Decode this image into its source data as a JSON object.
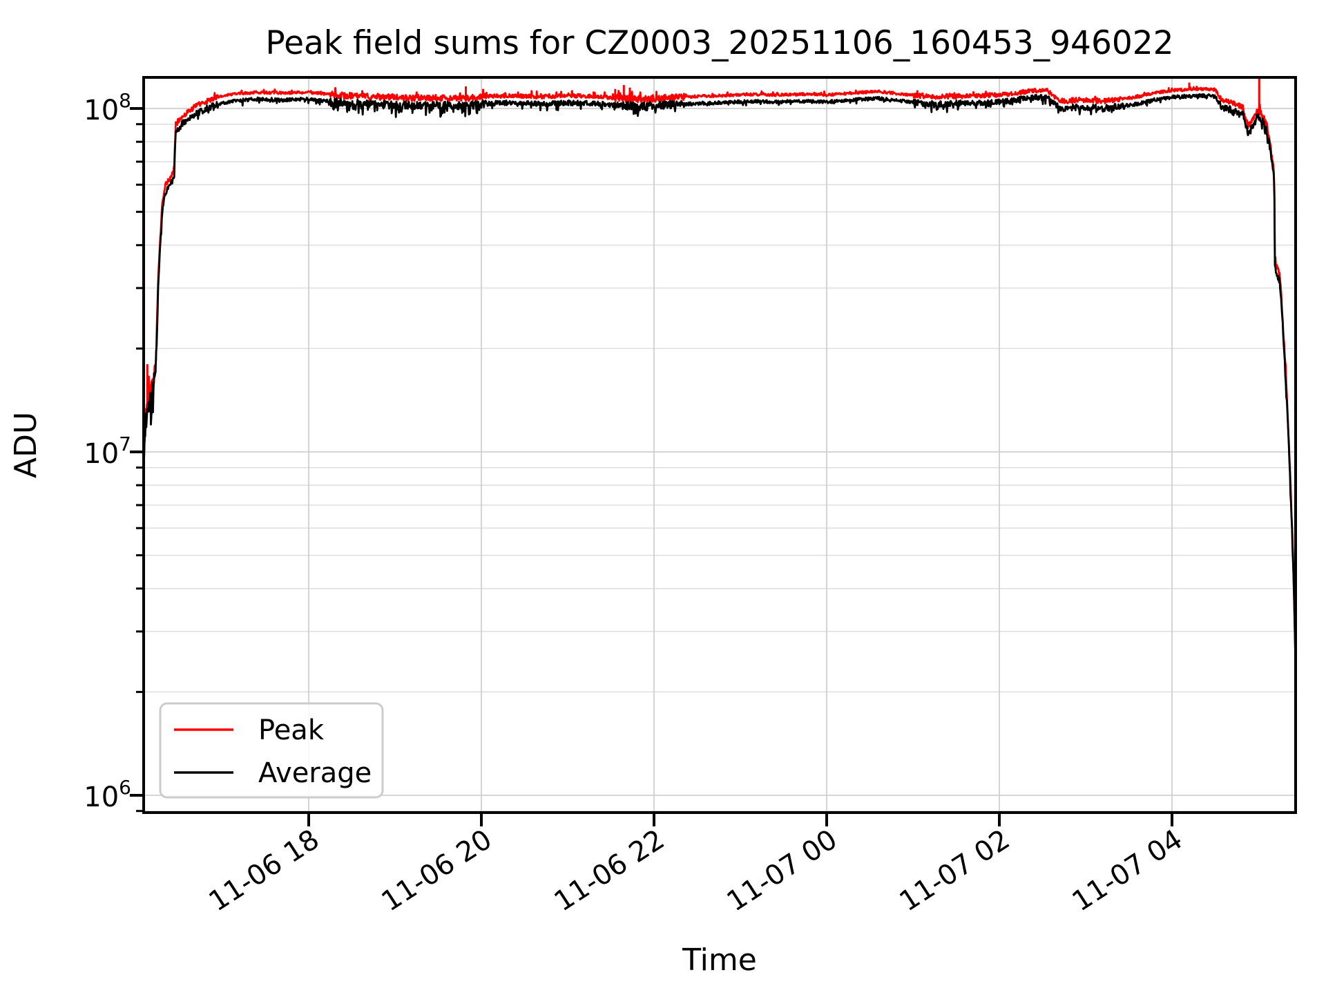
{
  "title": "Peak field sums for CZ0003_20251106_160453_946022",
  "axes": {
    "xlabel": "Time",
    "ylabel": "ADU"
  },
  "legend": {
    "items": [
      {
        "label": "Peak",
        "color": "#ff0000"
      },
      {
        "label": "Average",
        "color": "#000000"
      }
    ]
  },
  "chart_data": {
    "type": "line",
    "title": "Peak field sums for CZ0003_20251106_160453_946022",
    "xlabel": "Time",
    "ylabel": "ADU",
    "yscale": "log",
    "ylim": [
      870000,
      123000000
    ],
    "x_unit_hours_after": "2025-11-06 16:00",
    "x_range_hours": [
      0.088,
      13.445
    ],
    "grid": "both",
    "legend_position": "lower-left",
    "x_ticks": [
      {
        "h": 2,
        "label": "11-06 18"
      },
      {
        "h": 4,
        "label": "11-06 20"
      },
      {
        "h": 6,
        "label": "11-06 22"
      },
      {
        "h": 8,
        "label": "11-07 00"
      },
      {
        "h": 10,
        "label": "11-07 02"
      },
      {
        "h": 12,
        "label": "11-07 04"
      }
    ],
    "y_ticks": [
      {
        "value": 1000000,
        "base": "10",
        "exp": "6"
      },
      {
        "value": 10000000,
        "base": "10",
        "exp": "7"
      },
      {
        "value": 100000000,
        "base": "10",
        "exp": "8"
      }
    ],
    "series": [
      {
        "name": "Peak",
        "color": "#ff0000",
        "bias": "up",
        "points": [
          [
            0.09,
            10000000.0
          ],
          [
            0.11,
            12600000.0
          ],
          [
            0.15,
            14700000.0
          ],
          [
            0.2,
            15800000.0
          ],
          [
            0.23,
            19000000.0
          ],
          [
            0.26,
            33600000.0
          ],
          [
            0.3,
            51500000.0
          ],
          [
            0.34,
            60000000.0
          ],
          [
            0.4,
            63000000.0
          ],
          [
            0.44,
            66000000.0
          ],
          [
            0.46,
            90000000.0
          ],
          [
            0.55,
            95500000.0
          ],
          [
            0.7,
            102000000.0
          ],
          [
            0.9,
            107000000.0
          ],
          [
            1.1,
            110000000.0
          ],
          [
            1.4,
            111500000.0
          ],
          [
            1.7,
            111000000.0
          ],
          [
            2.0,
            111500000.0
          ],
          [
            2.3,
            109500000.0
          ],
          [
            2.6,
            108500000.0
          ],
          [
            2.9,
            108000000.0
          ],
          [
            3.2,
            107000000.0
          ],
          [
            3.5,
            107500000.0
          ],
          [
            3.8,
            107000000.0
          ],
          [
            4.1,
            108500000.0
          ],
          [
            4.4,
            109000000.0
          ],
          [
            4.7,
            108000000.0
          ],
          [
            5.0,
            109000000.0
          ],
          [
            5.3,
            108500000.0
          ],
          [
            5.6,
            107000000.0
          ],
          [
            5.9,
            106500000.0
          ],
          [
            6.2,
            107500000.0
          ],
          [
            6.5,
            108500000.0
          ],
          [
            6.8,
            109000000.0
          ],
          [
            7.1,
            110000000.0
          ],
          [
            7.4,
            109500000.0
          ],
          [
            7.7,
            110000000.0
          ],
          [
            8.0,
            109500000.0
          ],
          [
            8.3,
            111000000.0
          ],
          [
            8.6,
            112000000.0
          ],
          [
            8.9,
            110000000.0
          ],
          [
            9.2,
            108000000.0
          ],
          [
            9.5,
            108500000.0
          ],
          [
            9.8,
            109000000.0
          ],
          [
            10.1,
            110000000.0
          ],
          [
            10.35,
            112500000.0
          ],
          [
            10.55,
            113000000.0
          ],
          [
            10.7,
            105000000.0
          ],
          [
            11.0,
            106000000.0
          ],
          [
            11.2,
            105000000.0
          ],
          [
            11.4,
            106500000.0
          ],
          [
            11.6,
            108000000.0
          ],
          [
            11.8,
            111000000.0
          ],
          [
            12.0,
            113000000.0
          ],
          [
            12.2,
            113500000.0
          ],
          [
            12.4,
            114000000.0
          ],
          [
            12.5,
            113500000.0
          ],
          [
            12.57,
            106000000.0
          ],
          [
            12.7,
            104000000.0
          ],
          [
            12.82,
            101000000.0
          ],
          [
            12.88,
            89000000.0
          ],
          [
            12.93,
            92000000.0
          ],
          [
            12.99,
            99000000.0
          ],
          [
            13.04,
            96000000.0
          ],
          [
            13.09,
            91000000.0
          ],
          [
            13.13,
            81000000.0
          ],
          [
            13.17,
            68000000.0
          ],
          [
            13.185,
            65000000.0
          ],
          [
            13.19,
            36000000.0
          ],
          [
            13.25,
            32500000.0
          ],
          [
            13.28,
            25000000.0
          ],
          [
            13.31,
            18500000.0
          ],
          [
            13.34,
            13000000.0
          ],
          [
            13.37,
            8400000.0
          ],
          [
            13.4,
            5200000.0
          ],
          [
            13.42,
            3300000.0
          ],
          [
            13.435,
            2100000.0
          ],
          [
            13.445,
            1450000.0
          ]
        ],
        "spikes": [
          [
            0.13,
            18000000.0
          ],
          [
            2.62,
            113000000.0
          ],
          [
            3.25,
            112000000.0
          ],
          [
            3.82,
            116000000.0
          ],
          [
            4.02,
            114000000.0
          ],
          [
            5.05,
            113000000.0
          ],
          [
            5.3,
            112000000.0
          ],
          [
            5.55,
            114000000.0
          ],
          [
            5.65,
            117000000.0
          ],
          [
            5.72,
            115000000.0
          ],
          [
            6.85,
            112000000.0
          ],
          [
            9.05,
            113000000.0
          ],
          [
            10.4,
            112000000.0
          ],
          [
            12.2,
            119000000.0
          ],
          [
            13.01,
            127000000.0
          ]
        ]
      },
      {
        "name": "Average",
        "color": "#000000",
        "bias": "down",
        "points": [
          [
            0.09,
            9500000.0
          ],
          [
            0.11,
            12000000.0
          ],
          [
            0.15,
            14000000.0
          ],
          [
            0.2,
            15000000.0
          ],
          [
            0.23,
            18000000.0
          ],
          [
            0.26,
            32000000.0
          ],
          [
            0.3,
            49000000.0
          ],
          [
            0.34,
            57000000.0
          ],
          [
            0.4,
            60000000.0
          ],
          [
            0.44,
            63000000.0
          ],
          [
            0.46,
            86000000.0
          ],
          [
            0.55,
            91000000.0
          ],
          [
            0.7,
            97000000.0
          ],
          [
            0.9,
            102000000.0
          ],
          [
            1.1,
            105000000.0
          ],
          [
            1.4,
            106500000.0
          ],
          [
            1.7,
            106000000.0
          ],
          [
            2.0,
            106500000.0
          ],
          [
            2.3,
            104500000.0
          ],
          [
            2.6,
            103500000.0
          ],
          [
            2.9,
            103000000.0
          ],
          [
            3.2,
            102000000.0
          ],
          [
            3.5,
            102500000.0
          ],
          [
            3.8,
            102000000.0
          ],
          [
            4.1,
            103500000.0
          ],
          [
            4.4,
            104000000.0
          ],
          [
            4.7,
            103000000.0
          ],
          [
            5.0,
            104000000.0
          ],
          [
            5.3,
            103500000.0
          ],
          [
            5.6,
            102000000.0
          ],
          [
            5.9,
            101500000.0
          ],
          [
            6.2,
            102500000.0
          ],
          [
            6.5,
            103500000.0
          ],
          [
            6.8,
            104000000.0
          ],
          [
            7.1,
            105000000.0
          ],
          [
            7.4,
            104500000.0
          ],
          [
            7.7,
            105000000.0
          ],
          [
            8.0,
            104500000.0
          ],
          [
            8.3,
            106000000.0
          ],
          [
            8.6,
            107000000.0
          ],
          [
            8.9,
            105000000.0
          ],
          [
            9.2,
            103000000.0
          ],
          [
            9.5,
            103500000.0
          ],
          [
            9.8,
            104000000.0
          ],
          [
            10.1,
            105000000.0
          ],
          [
            10.35,
            107500000.0
          ],
          [
            10.55,
            108000000.0
          ],
          [
            10.7,
            100000000.0
          ],
          [
            11.0,
            101000000.0
          ],
          [
            11.2,
            100000000.0
          ],
          [
            11.4,
            101500000.0
          ],
          [
            11.6,
            103000000.0
          ],
          [
            11.8,
            106000000.0
          ],
          [
            12.0,
            108000000.0
          ],
          [
            12.2,
            108500000.0
          ],
          [
            12.4,
            109000000.0
          ],
          [
            12.5,
            108500000.0
          ],
          [
            12.57,
            101000000.0
          ],
          [
            12.7,
            99000000.0
          ],
          [
            12.82,
            97000000.0
          ],
          [
            12.88,
            85000000.0
          ],
          [
            12.93,
            88000000.0
          ],
          [
            12.99,
            95000000.0
          ],
          [
            13.04,
            92000000.0
          ],
          [
            13.09,
            87000000.0
          ],
          [
            13.13,
            78000000.0
          ],
          [
            13.17,
            65000000.0
          ],
          [
            13.185,
            62000000.0
          ],
          [
            13.19,
            35000000.0
          ],
          [
            13.25,
            31000000.0
          ],
          [
            13.28,
            24000000.0
          ],
          [
            13.31,
            17500000.0
          ],
          [
            13.34,
            12500000.0
          ],
          [
            13.37,
            8000000.0
          ],
          [
            13.4,
            5000000.0
          ],
          [
            13.42,
            3200000.0
          ],
          [
            13.435,
            2100000.0
          ],
          [
            13.445,
            1550000.0
          ]
        ],
        "spikes": []
      }
    ],
    "noise": {
      "seed": 42,
      "step_h": 0.006,
      "segments": [
        {
          "from": 0.088,
          "to": 0.235,
          "amp": 0.085,
          "dip": 0.2,
          "dipAmp": 0.1,
          "spike": 0.1,
          "spikeAmp": 0.12
        },
        {
          "from": 0.235,
          "to": 0.46,
          "amp": 0.02,
          "dip": 0.05,
          "dipAmp": 0.03,
          "spike": 0.04,
          "spikeAmp": 0.03
        },
        {
          "from": 0.46,
          "to": 0.95,
          "amp": 0.022,
          "dip": 0.1,
          "dipAmp": 0.035,
          "spike": 0.05,
          "spikeAmp": 0.03
        },
        {
          "from": 0.95,
          "to": 2.25,
          "amp": 0.011,
          "dip": 0.06,
          "dipAmp": 0.03,
          "spike": 0.04,
          "spikeAmp": 0.02
        },
        {
          "from": 2.25,
          "to": 4.05,
          "amp": 0.026,
          "dip": 0.17,
          "dipAmp": 0.055,
          "spike": 0.05,
          "spikeAmp": 0.035
        },
        {
          "from": 4.05,
          "to": 5.55,
          "amp": 0.016,
          "dip": 0.08,
          "dipAmp": 0.04,
          "spike": 0.05,
          "spikeAmp": 0.03
        },
        {
          "from": 5.55,
          "to": 6.35,
          "amp": 0.028,
          "dip": 0.18,
          "dipAmp": 0.055,
          "spike": 0.06,
          "spikeAmp": 0.04
        },
        {
          "from": 6.35,
          "to": 9.0,
          "amp": 0.011,
          "dip": 0.05,
          "dipAmp": 0.025,
          "spike": 0.04,
          "spikeAmp": 0.02
        },
        {
          "from": 9.0,
          "to": 9.6,
          "amp": 0.02,
          "dip": 0.1,
          "dipAmp": 0.04,
          "spike": 0.05,
          "spikeAmp": 0.025
        },
        {
          "from": 9.6,
          "to": 10.65,
          "amp": 0.018,
          "dip": 0.08,
          "dipAmp": 0.035,
          "spike": 0.04,
          "spikeAmp": 0.025
        },
        {
          "from": 10.65,
          "to": 11.45,
          "amp": 0.022,
          "dip": 0.12,
          "dipAmp": 0.04,
          "spike": 0.04,
          "spikeAmp": 0.02
        },
        {
          "from": 11.45,
          "to": 12.55,
          "amp": 0.012,
          "dip": 0.05,
          "dipAmp": 0.02,
          "spike": 0.04,
          "spikeAmp": 0.02
        },
        {
          "from": 12.55,
          "to": 12.99,
          "amp": 0.022,
          "dip": 0.1,
          "dipAmp": 0.04,
          "spike": 0.04,
          "spikeAmp": 0.03
        },
        {
          "from": 12.99,
          "to": 13.45,
          "amp": 0.028,
          "dip": 0.1,
          "dipAmp": 0.05,
          "spike": 0.06,
          "spikeAmp": 0.04
        }
      ]
    },
    "colors": {
      "grid_major": "#cfcfcf",
      "grid_minor": "#dedede",
      "frame": "#000000",
      "legend_border": "#cccccc"
    }
  }
}
